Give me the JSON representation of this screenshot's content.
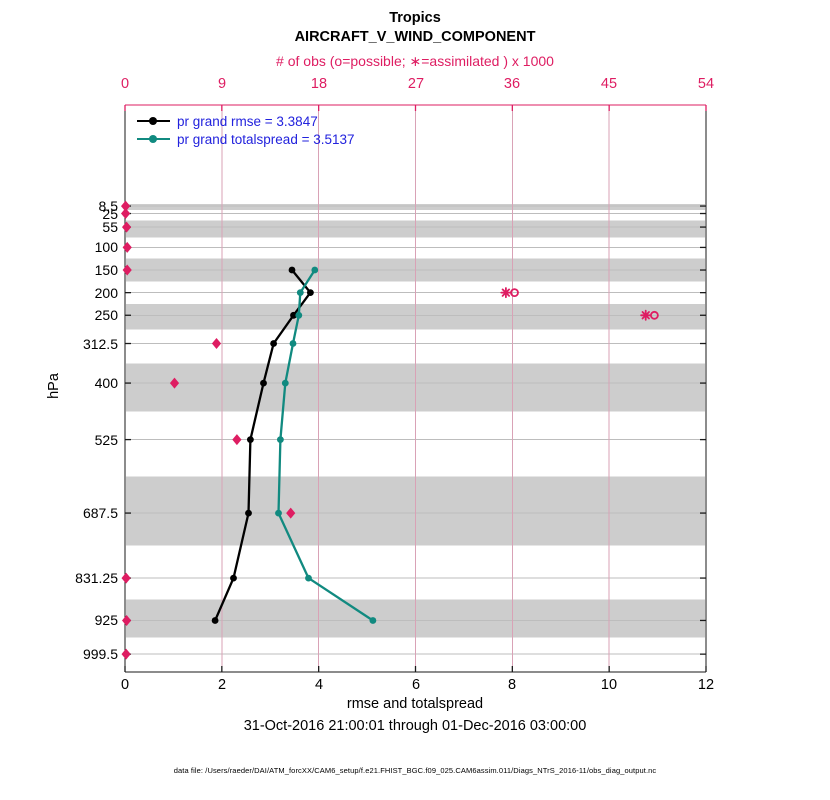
{
  "header": {
    "title_line1": "Tropics",
    "title_line2": "AIRCRAFT_V_WIND_COMPONENT"
  },
  "footer": {
    "data_file_note": "data file: /Users/raeder/DAI/ATM_forcXX/CAM6_setup/f.e21.FHIST_BGC.f09_025.CAM6assim.011/Diags_NTrS_2016-11/obs_diag_output.nc"
  },
  "colors": {
    "accent_pink": "#de1d62",
    "grid_pink": "#d9a2b6",
    "band_gray": "#cdcdcd",
    "grid_gray": "#bdbdbd",
    "axis_dark": "#1a1a1a",
    "legend_text_blue": "#2222dd",
    "rmse_black": "#000000",
    "totalspread_teal": "#118a80"
  },
  "chart_data": {
    "type": "line",
    "title": "Tropics",
    "subtitle": "AIRCRAFT_V_WIND_COMPONENT",
    "top_axis_label": "# of obs (o=possible; ∗=assimilated ) x 1000",
    "xlabel": "rmse and totalspread",
    "ylabel": "hPa",
    "date_range_label": "31-Oct-2016 21:00:01 through 01-Dec-2016 03:00:00",
    "y_axis_units": "hPa",
    "y_levels": [
      8.5,
      25,
      55,
      100,
      150,
      200,
      250,
      312.5,
      400,
      525,
      687.5,
      831.25,
      925,
      999.5
    ],
    "y_tick_labels": [
      "8.5",
      "25",
      "55",
      "100",
      "150",
      "200",
      "250",
      "312.5",
      "400",
      "525",
      "687.5",
      "831.25",
      "925",
      "999.5"
    ],
    "ylim": [
      -215,
      1039
    ],
    "x_bottom": {
      "min": 0,
      "max": 12,
      "ticks": [
        0,
        2,
        4,
        6,
        8,
        10,
        12
      ]
    },
    "x_top": {
      "min": 0,
      "max": 54,
      "ticks": [
        0,
        9,
        18,
        27,
        36,
        45,
        54
      ],
      "grid_ticks": [
        9,
        18,
        27,
        36,
        45
      ]
    },
    "bands": [
      [
        4,
        16.75
      ],
      [
        40,
        77.5
      ],
      [
        125,
        175
      ],
      [
        225,
        281.25
      ],
      [
        356.25,
        462.5
      ],
      [
        606.25,
        759.375
      ],
      [
        878.125,
        962.25
      ]
    ],
    "series": [
      {
        "name": "pr grand rmse",
        "legend": "pr grand rmse = 3.3847",
        "summary_value": 3.3847,
        "color": "#000000",
        "levels": [
          150,
          200,
          250,
          312.5,
          400,
          525,
          687.5,
          831.25,
          925
        ],
        "values": [
          3.45,
          3.83,
          3.48,
          3.07,
          2.86,
          2.59,
          2.55,
          2.24,
          1.86
        ]
      },
      {
        "name": "pr grand totalspread",
        "legend": "pr grand totalspread = 3.5137",
        "summary_value": 3.5137,
        "color": "#118a80",
        "levels": [
          150,
          200,
          250,
          312.5,
          400,
          525,
          687.5,
          831.25,
          925
        ],
        "values": [
          3.92,
          3.62,
          3.59,
          3.47,
          3.31,
          3.21,
          3.17,
          3.79,
          5.12
        ]
      }
    ],
    "obs_counts": {
      "units": "x 1000",
      "levels": [
        8.5,
        25,
        55,
        100,
        150,
        200,
        250,
        312.5,
        400,
        525,
        687.5,
        831.25,
        925,
        999.5
      ],
      "possible": [
        0.05,
        0.05,
        0.15,
        0.2,
        0.2,
        36.2,
        49.2,
        8.5,
        4.6,
        10.4,
        15.4,
        0.1,
        0.15,
        0.1
      ],
      "assimilated": [
        0.05,
        0.05,
        0.15,
        0.2,
        0.2,
        35.4,
        48.4,
        8.5,
        4.6,
        10.4,
        15.4,
        0.1,
        0.15,
        0.1
      ]
    },
    "legend_position": "top-left-inside",
    "grid": "on"
  }
}
